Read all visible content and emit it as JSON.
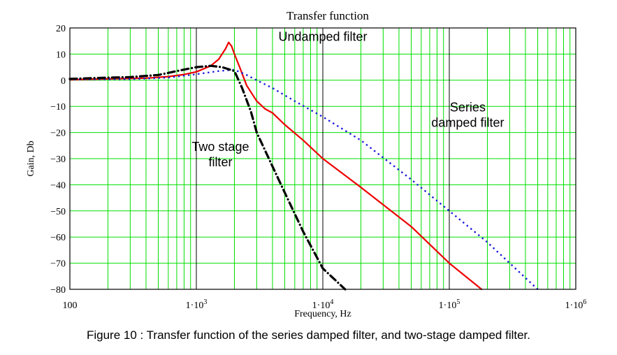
{
  "caption": "Figure 10 : Transfer function of the series damped filter, and two-stage damped filter.",
  "chart_data": {
    "type": "line",
    "title": "Transfer function",
    "xlabel": "Frequency, Hz",
    "ylabel": "Gain, Db",
    "xscale": "log",
    "xlim": [
      100,
      1000000
    ],
    "ylim": [
      -80,
      20
    ],
    "grid": true,
    "xticks": [
      {
        "value": 100,
        "base": "100",
        "exp": ""
      },
      {
        "value": 1000,
        "base": "1·10",
        "exp": "3"
      },
      {
        "value": 10000,
        "base": "1·10",
        "exp": "4"
      },
      {
        "value": 100000,
        "base": "1·10",
        "exp": "5"
      },
      {
        "value": 1000000,
        "base": "1·10",
        "exp": "6"
      }
    ],
    "yticks": [
      20,
      10,
      0,
      -10,
      -20,
      -30,
      -40,
      -50,
      -60,
      -70,
      -80
    ],
    "colors": {
      "grid": "#00e000",
      "decade": "#000000",
      "frame": "#000000"
    },
    "series": [
      {
        "key": "undamped",
        "color": "#ee0000",
        "style": "solid",
        "points": [
          [
            100,
            0.2
          ],
          [
            200,
            0.5
          ],
          [
            400,
            0.8
          ],
          [
            600,
            1.4
          ],
          [
            800,
            2.2
          ],
          [
            1000,
            3.2
          ],
          [
            1300,
            5.5
          ],
          [
            1500,
            8
          ],
          [
            1700,
            12
          ],
          [
            1800,
            14.5
          ],
          [
            1900,
            13
          ],
          [
            2000,
            10
          ],
          [
            2200,
            5
          ],
          [
            2500,
            -2
          ],
          [
            3000,
            -8
          ],
          [
            3500,
            -11
          ],
          [
            4000,
            -12.5
          ],
          [
            5000,
            -17
          ],
          [
            7000,
            -23
          ],
          [
            10000,
            -30
          ],
          [
            20000,
            -41
          ],
          [
            50000,
            -56
          ],
          [
            100000,
            -70
          ],
          [
            180000,
            -80
          ]
        ]
      },
      {
        "key": "series-damped",
        "color": "#1a1adc",
        "style": "dotted",
        "points": [
          [
            100,
            0.3
          ],
          [
            300,
            0.4
          ],
          [
            600,
            1
          ],
          [
            1000,
            2.3
          ],
          [
            1500,
            3.5
          ],
          [
            2000,
            4
          ],
          [
            2500,
            2
          ],
          [
            3000,
            0
          ],
          [
            4000,
            -3
          ],
          [
            6000,
            -8
          ],
          [
            10000,
            -14
          ],
          [
            20000,
            -23
          ],
          [
            50000,
            -38
          ],
          [
            100000,
            -50
          ],
          [
            200000,
            -62
          ],
          [
            500000,
            -80
          ]
        ]
      },
      {
        "key": "two-stage",
        "color": "#000000",
        "style": "dashdot",
        "points": [
          [
            100,
            0.5
          ],
          [
            150,
            0.8
          ],
          [
            200,
            1
          ],
          [
            300,
            1.2
          ],
          [
            500,
            2
          ],
          [
            700,
            3.5
          ],
          [
            1000,
            5
          ],
          [
            1300,
            5.5
          ],
          [
            1600,
            5
          ],
          [
            2000,
            3.5
          ],
          [
            2300,
            -3
          ],
          [
            2700,
            -12
          ],
          [
            3000,
            -20
          ],
          [
            4000,
            -33
          ],
          [
            5000,
            -43
          ],
          [
            7000,
            -58
          ],
          [
            10000,
            -72
          ],
          [
            15000,
            -80
          ]
        ]
      }
    ],
    "annotations": [
      {
        "key": "undamped-label",
        "lines": [
          "Undamped filter"
        ],
        "x": 10000,
        "y": 15,
        "anchor": "middle"
      },
      {
        "key": "series-label",
        "lines": [
          "Series",
          "damped filter"
        ],
        "x": 140000,
        "y": -12,
        "anchor": "middle"
      },
      {
        "key": "two-stage-label",
        "lines": [
          "Two stage",
          "filter"
        ],
        "x": 1550,
        "y": -27,
        "anchor": "middle"
      }
    ]
  }
}
